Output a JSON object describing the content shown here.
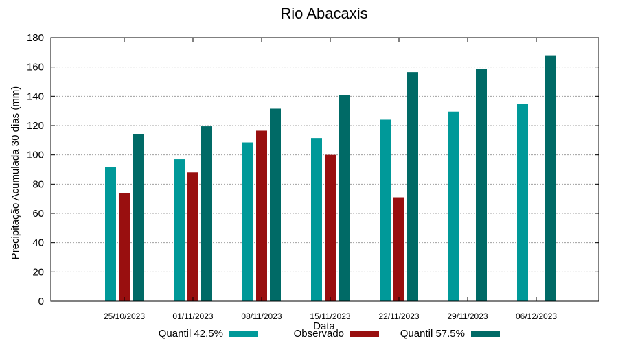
{
  "chart_data": {
    "type": "bar",
    "title": "Rio Abacaxis",
    "xlabel": "Data",
    "ylabel": "Precipitação Acumulada 30 dias (mm)",
    "ylim": [
      0,
      180
    ],
    "yticks": [
      0,
      20,
      40,
      60,
      80,
      100,
      120,
      140,
      160,
      180
    ],
    "grid": true,
    "legend_position": "bottom",
    "categories": [
      "25/10/2023",
      "01/11/2023",
      "08/11/2023",
      "15/11/2023",
      "22/11/2023",
      "29/11/2023",
      "06/12/2023"
    ],
    "series": [
      {
        "name": "Quantil 42.5%",
        "color": "#009999",
        "values": [
          91.5,
          97,
          108.5,
          111.5,
          124,
          129.5,
          135
        ]
      },
      {
        "name": "Observado",
        "color": "#990f0f",
        "values": [
          74,
          88,
          116.5,
          100,
          71,
          null,
          null
        ]
      },
      {
        "name": "Quantil 57.5%",
        "color": "#006a66",
        "values": [
          114,
          119.5,
          131.5,
          141,
          156.5,
          158.5,
          168
        ]
      }
    ]
  }
}
